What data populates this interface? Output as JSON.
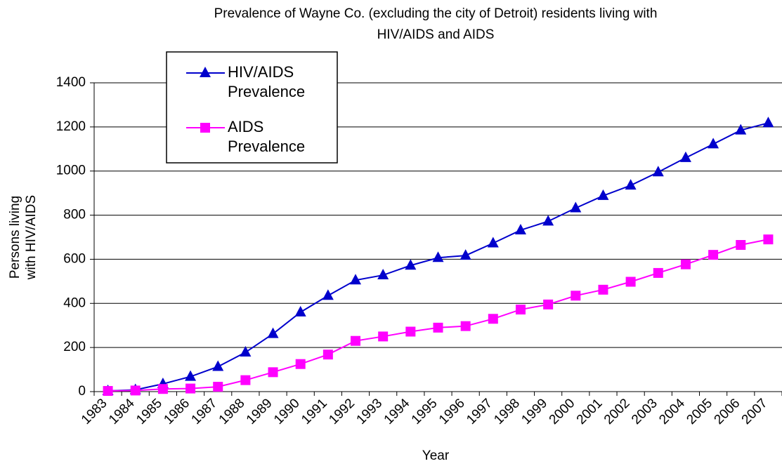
{
  "chart_data": {
    "type": "line",
    "title": [
      "Prevalence of Wayne Co. (excluding the city of Detroit) residents living with",
      "HIV/AIDS and AIDS"
    ],
    "x_label": "Year",
    "y_label": [
      "Persons living",
      "with HIV/AIDS"
    ],
    "categories": [
      "1983",
      "1984",
      "1985",
      "1986",
      "1987",
      "1988",
      "1989",
      "1990",
      "1991",
      "1992",
      "1993",
      "1994",
      "1995",
      "1996",
      "1997",
      "1998",
      "1999",
      "2000",
      "2001",
      "2002",
      "2003",
      "2004",
      "2005",
      "2006",
      "2007"
    ],
    "series": [
      {
        "name": [
          "HIV/AIDS",
          "Prevalence"
        ],
        "color": "#0000cc",
        "marker": "triangle",
        "values": [
          3,
          8,
          35,
          68,
          113,
          178,
          262,
          360,
          435,
          505,
          528,
          572,
          607,
          617,
          673,
          732,
          772,
          832,
          888,
          935,
          995,
          1060,
          1122,
          1185,
          1218
        ]
      },
      {
        "name": [
          "AIDS",
          "Prevalence"
        ],
        "color": "#ff00ff",
        "marker": "square",
        "values": [
          3,
          5,
          12,
          14,
          22,
          52,
          88,
          125,
          168,
          230,
          250,
          272,
          290,
          297,
          330,
          372,
          395,
          435,
          462,
          498,
          538,
          577,
          620,
          665,
          690
        ]
      }
    ],
    "ylim": [
      0,
      1400
    ],
    "yticks": [
      0,
      200,
      400,
      600,
      800,
      1000,
      1200,
      1400
    ],
    "grid": true
  }
}
